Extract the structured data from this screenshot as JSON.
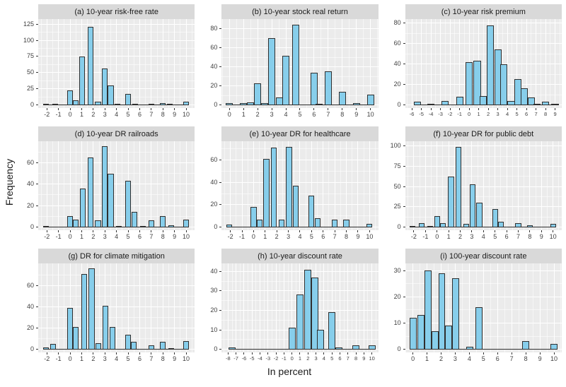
{
  "figure": {
    "ylabel": "Frequency",
    "xlabel": "In percent"
  },
  "style": {
    "bar_fill": "#87ceeb",
    "bar_stroke": "#2f2f2f",
    "panel_bg": "#ebebeb",
    "strip_bg": "#d9d9d9",
    "grid_major": "#ffffff",
    "tick_text": "#404040",
    "title_text": "#1a1a1a"
  },
  "chart_data": [
    {
      "id": "a",
      "type": "bar",
      "title": "(a) 10-year risk-free rate",
      "x_ticks": [
        -2,
        -1,
        0,
        1,
        2,
        3,
        4,
        5,
        6,
        7,
        8,
        9,
        10
      ],
      "y_ticks": [
        0,
        25,
        50,
        75,
        100,
        125
      ],
      "xlim": [
        -2.75,
        10.75
      ],
      "ymax": 128,
      "binwidth": 0.5,
      "bars": [
        [
          -2.1,
          1
        ],
        [
          -1.3,
          2
        ],
        [
          0,
          23
        ],
        [
          0.5,
          7
        ],
        [
          1.05,
          75
        ],
        [
          1.75,
          121
        ],
        [
          2.4,
          5
        ],
        [
          3,
          56
        ],
        [
          3.5,
          30
        ],
        [
          4.1,
          1
        ],
        [
          5,
          17
        ],
        [
          5.6,
          1
        ],
        [
          7,
          1
        ],
        [
          8,
          3
        ],
        [
          8.6,
          1
        ],
        [
          10,
          5
        ]
      ]
    },
    {
      "id": "b",
      "type": "bar",
      "title": "(b) 10-year stock real return",
      "x_ticks": [
        0,
        1,
        2,
        3,
        4,
        5,
        6,
        7,
        8,
        9,
        10
      ],
      "y_ticks": [
        0,
        20,
        40,
        60,
        80
      ],
      "xlim": [
        -0.55,
        10.55
      ],
      "ymax": 87,
      "binwidth": 0.5,
      "bars": [
        [
          0,
          2
        ],
        [
          1,
          2
        ],
        [
          1.5,
          3
        ],
        [
          2,
          23
        ],
        [
          2.5,
          2
        ],
        [
          3,
          70
        ],
        [
          3.55,
          8
        ],
        [
          4,
          52
        ],
        [
          4.7,
          84
        ],
        [
          6,
          34
        ],
        [
          6.35,
          1
        ],
        [
          7,
          35
        ],
        [
          8,
          14
        ],
        [
          9,
          2
        ],
        [
          10,
          11
        ]
      ]
    },
    {
      "id": "c",
      "type": "bar",
      "title": "(c) 10-year risk premium",
      "x_ticks": [
        -6,
        -5,
        -4,
        -3,
        -2,
        -1,
        0,
        1,
        2,
        3,
        4,
        5,
        6,
        7,
        8,
        9
      ],
      "y_ticks": [
        0,
        20,
        40,
        60,
        80
      ],
      "xlim": [
        -6.7,
        9.7
      ],
      "ymax": 81,
      "binwidth": 0.75,
      "bars": [
        [
          -5.4,
          3
        ],
        [
          -4,
          1
        ],
        [
          -2.5,
          4
        ],
        [
          -1,
          8
        ],
        [
          0,
          42
        ],
        [
          0.85,
          43
        ],
        [
          1.5,
          9
        ],
        [
          2.2,
          78
        ],
        [
          3,
          54
        ],
        [
          3.65,
          40
        ],
        [
          4.4,
          4
        ],
        [
          5.1,
          25
        ],
        [
          5.8,
          16
        ],
        [
          6.5,
          7
        ],
        [
          7.1,
          1
        ],
        [
          8,
          3
        ],
        [
          9,
          1
        ]
      ]
    },
    {
      "id": "d",
      "type": "bar",
      "title": "(d) 10-year DR railroads",
      "x_ticks": [
        -2,
        -1,
        0,
        1,
        2,
        3,
        4,
        5,
        6,
        7,
        8,
        9,
        10
      ],
      "y_ticks": [
        0,
        20,
        40,
        60
      ],
      "xlim": [
        -2.75,
        10.75
      ],
      "ymax": 77,
      "binwidth": 0.5,
      "bars": [
        [
          -2.1,
          1
        ],
        [
          0,
          10
        ],
        [
          0.5,
          7
        ],
        [
          1.1,
          36
        ],
        [
          1.75,
          65
        ],
        [
          2.4,
          6
        ],
        [
          3,
          75
        ],
        [
          3.5,
          50
        ],
        [
          4.2,
          1
        ],
        [
          5,
          43
        ],
        [
          5.55,
          14
        ],
        [
          6.3,
          1
        ],
        [
          7,
          6
        ],
        [
          8,
          10
        ],
        [
          8.7,
          2
        ],
        [
          10,
          7
        ]
      ]
    },
    {
      "id": "e",
      "type": "bar",
      "title": "(e) 10-year DR for healthcare",
      "x_ticks": [
        -2,
        -1,
        0,
        1,
        2,
        3,
        4,
        5,
        6,
        7,
        8,
        9,
        10
      ],
      "y_ticks": [
        0,
        20,
        40,
        60
      ],
      "xlim": [
        -2.75,
        10.75
      ],
      "ymax": 74,
      "binwidth": 0.5,
      "bars": [
        [
          -2.1,
          2
        ],
        [
          0,
          18
        ],
        [
          0.5,
          7
        ],
        [
          1.1,
          61
        ],
        [
          1.75,
          71
        ],
        [
          2.4,
          7
        ],
        [
          3.05,
          72
        ],
        [
          3.65,
          37
        ],
        [
          5,
          28
        ],
        [
          5.55,
          8
        ],
        [
          7,
          7
        ],
        [
          8,
          7
        ],
        [
          10,
          3
        ]
      ]
    },
    {
      "id": "f",
      "type": "bar",
      "title": "(f) 10-year DR for public debt",
      "x_ticks": [
        -2,
        -1,
        0,
        1,
        2,
        3,
        4,
        5,
        6,
        7,
        8,
        9,
        10
      ],
      "y_ticks": [
        0,
        25,
        50,
        75,
        100
      ],
      "xlim": [
        -2.75,
        10.75
      ],
      "ymax": 102,
      "binwidth": 0.5,
      "bars": [
        [
          -2.1,
          1
        ],
        [
          -1.35,
          5
        ],
        [
          -0.6,
          1
        ],
        [
          0,
          14
        ],
        [
          0.5,
          5
        ],
        [
          1.2,
          62
        ],
        [
          1.85,
          99
        ],
        [
          2.5,
          4
        ],
        [
          3.05,
          53
        ],
        [
          3.65,
          30
        ],
        [
          5,
          22
        ],
        [
          5.5,
          7
        ],
        [
          7,
          5
        ],
        [
          8,
          2
        ],
        [
          10,
          4
        ]
      ]
    },
    {
      "id": "g",
      "type": "bar",
      "title": "(g) DR for climate mitigation",
      "x_ticks": [
        -2,
        -1,
        0,
        1,
        2,
        3,
        4,
        5,
        6,
        7,
        8,
        9,
        10
      ],
      "y_ticks": [
        0,
        20,
        40,
        60
      ],
      "xlim": [
        -2.75,
        10.75
      ],
      "ymax": 78,
      "binwidth": 0.5,
      "bars": [
        [
          -2.1,
          2
        ],
        [
          -1.45,
          5
        ],
        [
          0,
          39
        ],
        [
          0.5,
          21
        ],
        [
          1.2,
          71
        ],
        [
          1.85,
          76
        ],
        [
          2.45,
          6
        ],
        [
          3.05,
          41
        ],
        [
          3.65,
          21
        ],
        [
          5,
          14
        ],
        [
          5.5,
          7
        ],
        [
          7,
          4
        ],
        [
          8,
          7
        ],
        [
          8.7,
          1
        ],
        [
          10,
          8
        ]
      ]
    },
    {
      "id": "h",
      "type": "bar",
      "title": "(h) 10-year discount rate",
      "x_ticks": [
        -8,
        -7,
        -6,
        -5,
        -4,
        -3,
        -2,
        -1,
        0,
        1,
        2,
        3,
        4,
        5,
        6,
        7,
        8,
        9,
        10
      ],
      "y_ticks": [
        0,
        10,
        20,
        30,
        40
      ],
      "xlim": [
        -8.8,
        10.8
      ],
      "ymax": 42.5,
      "binwidth": 0.9,
      "bars": [
        [
          -7.5,
          1
        ],
        [
          0,
          11
        ],
        [
          1,
          28
        ],
        [
          2,
          41
        ],
        [
          2.85,
          37
        ],
        [
          3.6,
          10
        ],
        [
          5,
          19
        ],
        [
          5.9,
          1
        ],
        [
          8,
          2
        ],
        [
          10,
          2
        ]
      ]
    },
    {
      "id": "i",
      "type": "bar",
      "title": "(i) 100-year discount rate",
      "x_ticks": [
        0,
        1,
        2,
        3,
        4,
        5,
        6,
        7,
        8,
        9,
        10
      ],
      "y_ticks": [
        0,
        10,
        20,
        30
      ],
      "xlim": [
        -0.55,
        10.55
      ],
      "ymax": 31.5,
      "binwidth": 0.5,
      "bars": [
        [
          0,
          12
        ],
        [
          0.55,
          13
        ],
        [
          1.05,
          30
        ],
        [
          1.55,
          7
        ],
        [
          2.05,
          29
        ],
        [
          2.55,
          9
        ],
        [
          3.05,
          27
        ],
        [
          4.05,
          1
        ],
        [
          4.7,
          16
        ],
        [
          8,
          3
        ],
        [
          10,
          2
        ]
      ]
    }
  ]
}
